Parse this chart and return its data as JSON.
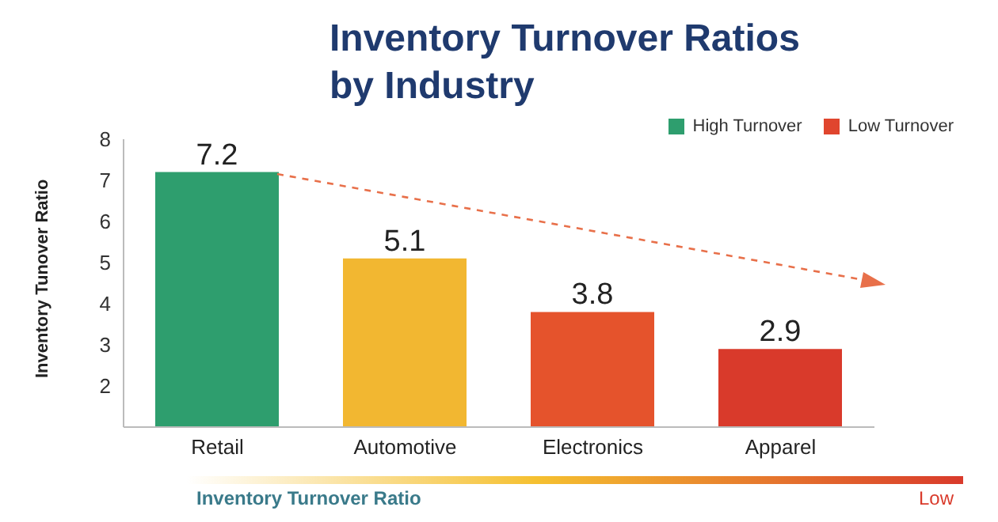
{
  "chart_data": {
    "type": "bar",
    "title": "Inventory Turnover Ratios by Industry",
    "ylabel": "Inventory Tunover Ratio",
    "xlabel": "Inventory Turnover Ratio",
    "annotations": [
      "Low"
    ],
    "categories": [
      "Retail",
      "Automotive",
      "Electronics",
      "Apparel"
    ],
    "series": [
      {
        "name": "High Turnover",
        "color": "#2e9e6e",
        "values": [
          7.2,
          null,
          null,
          null
        ]
      },
      {
        "name": "Low Turnover",
        "color": "#e0452e",
        "colors": [
          null,
          "#f2b731",
          "#e5532c",
          "#d93a2b"
        ],
        "values": [
          null,
          5.1,
          3.8,
          2.9
        ]
      }
    ],
    "stacked": true,
    "ylim": [
      1,
      8
    ],
    "yticks": [
      2,
      3,
      4,
      5,
      6,
      7,
      8
    ],
    "data_labels": true,
    "legend": "top right"
  }
}
